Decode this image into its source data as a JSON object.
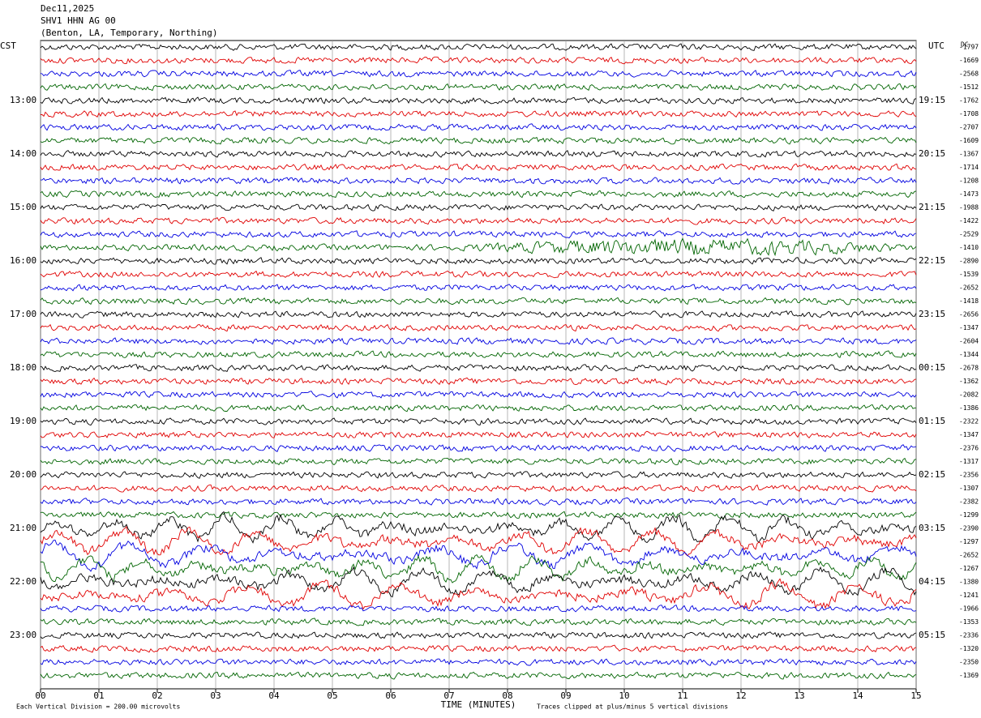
{
  "header": {
    "date": "Dec11,2025",
    "station": "SHV1 HHN AG 00",
    "location": "(Benton, LA, Temporary, Northing)"
  },
  "left_zone": "CST",
  "right_zone": "UTC",
  "dc_label": "DC",
  "left_times": [
    "13:00",
    "14:00",
    "15:00",
    "16:00",
    "17:00",
    "18:00",
    "19:00",
    "20:00",
    "21:00",
    "22:00",
    "23:00"
  ],
  "right_times": [
    "19:15",
    "20:15",
    "21:15",
    "22:15",
    "23:15",
    "00:15",
    "01:15",
    "02:15",
    "03:15",
    "04:15",
    "05:15"
  ],
  "dc_offsets": [
    -1797,
    -1669,
    -2568,
    -1512,
    -1762,
    -1708,
    -2707,
    -1609,
    -1367,
    -1714,
    -1208,
    -1473,
    -1988,
    -1422,
    -2529,
    -1410,
    -2890,
    -1539,
    -2652,
    -1418,
    -2656,
    -1347,
    -2604,
    -1344,
    -2678,
    -1362,
    -2082,
    -1386,
    -2322,
    -1347,
    -2376,
    -1317,
    -2356,
    -1307,
    -2382,
    -1299,
    -2390,
    -1297,
    -2652,
    -1267,
    -1380,
    -1241,
    -1966,
    -1353,
    -2336,
    -1320,
    -2350,
    -1369
  ],
  "trace_colors": [
    "#000000",
    "#e00000",
    "#0000e0",
    "#006400"
  ],
  "x_ticks": [
    "00",
    "01",
    "02",
    "03",
    "04",
    "05",
    "06",
    "07",
    "08",
    "09",
    "10",
    "11",
    "12",
    "13",
    "14",
    "15"
  ],
  "x_axis_title": "TIME (MINUTES)",
  "footer_left": "Each Vertical Division =  200.00 microvolts",
  "footer_right": "Traces clipped at plus/minus 5 vertical divisions"
}
